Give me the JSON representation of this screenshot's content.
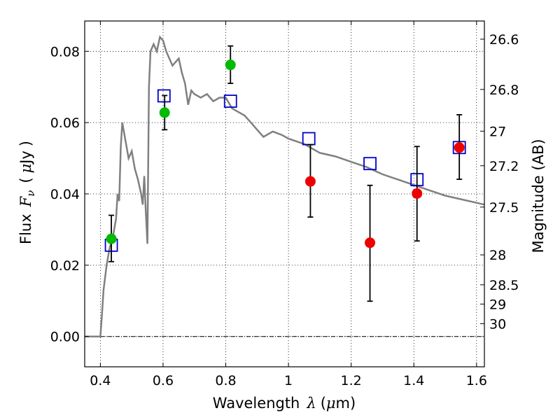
{
  "chart_data": {
    "type": "scatter",
    "xlabel": {
      "prefix": "Wavelength",
      "symbol": "λ",
      "unit_open": "(",
      "unit_mu": "μ",
      "unit_rest": "m)"
    },
    "ylabel": {
      "prefix": "Flux",
      "symbol": "F",
      "subscript": "ν",
      "unit_open": "(",
      "unit_mu": "μ",
      "unit_rest": "Jy",
      "unit_close": ")"
    },
    "y2label": "Magnitude (AB)",
    "xlim": [
      0.35,
      1.625
    ],
    "ylim": [
      -0.0085,
      0.0885
    ],
    "x_ticks": [
      0.4,
      0.6,
      0.8,
      1.0,
      1.2,
      1.4,
      1.6
    ],
    "x_tick_labels": [
      "0.4",
      "0.6",
      "0.8",
      "1",
      "1.2",
      "1.4",
      "1.6"
    ],
    "y_ticks": [
      0.0,
      0.02,
      0.04,
      0.06,
      0.08
    ],
    "y_tick_labels": [
      "0.00",
      "0.02",
      "0.04",
      "0.06",
      "0.08"
    ],
    "y2_ticks": [
      {
        "label": "26.6",
        "flux": 0.0834
      },
      {
        "label": "26.8",
        "flux": 0.0693
      },
      {
        "label": "27",
        "flux": 0.0576
      },
      {
        "label": "27.2",
        "flux": 0.0479
      },
      {
        "label": "27.5",
        "flux": 0.0363
      },
      {
        "label": "28",
        "flux": 0.0229
      },
      {
        "label": "28.5",
        "flux": 0.0145
      },
      {
        "label": "29",
        "flux": 0.0091
      },
      {
        "label": "30",
        "flux": 0.0036
      }
    ],
    "grid": true,
    "zero_line": 0.0,
    "colors": {
      "model": "#808080",
      "template": "#0000cc",
      "green": "#00bb00",
      "red": "#ee0000",
      "error": "#000000"
    },
    "model_spectrum": {
      "x": [
        0.35,
        0.4,
        0.405,
        0.41,
        0.42,
        0.43,
        0.44,
        0.45,
        0.455,
        0.46,
        0.465,
        0.47,
        0.48,
        0.49,
        0.5,
        0.51,
        0.52,
        0.53,
        0.535,
        0.54,
        0.545,
        0.55,
        0.555,
        0.56,
        0.57,
        0.58,
        0.59,
        0.6,
        0.61,
        0.62,
        0.63,
        0.64,
        0.65,
        0.66,
        0.67,
        0.68,
        0.69,
        0.7,
        0.72,
        0.74,
        0.76,
        0.78,
        0.8,
        0.82,
        0.84,
        0.86,
        0.88,
        0.9,
        0.92,
        0.95,
        0.98,
        1.0,
        1.05,
        1.1,
        1.15,
        1.2,
        1.25,
        1.3,
        1.35,
        1.4,
        1.45,
        1.5,
        1.55,
        1.6,
        1.625
      ],
      "y": [
        0.0,
        0.0,
        0.006,
        0.013,
        0.02,
        0.025,
        0.028,
        0.033,
        0.04,
        0.038,
        0.053,
        0.06,
        0.055,
        0.05,
        0.052,
        0.047,
        0.044,
        0.04,
        0.037,
        0.045,
        0.035,
        0.026,
        0.07,
        0.08,
        0.082,
        0.08,
        0.084,
        0.083,
        0.08,
        0.078,
        0.076,
        0.077,
        0.078,
        0.074,
        0.071,
        0.065,
        0.069,
        0.068,
        0.067,
        0.068,
        0.066,
        0.067,
        0.067,
        0.064,
        0.063,
        0.062,
        0.06,
        0.058,
        0.056,
        0.0575,
        0.0565,
        0.0555,
        0.054,
        0.0515,
        0.0505,
        0.049,
        0.0475,
        0.0455,
        0.044,
        0.0425,
        0.041,
        0.0395,
        0.0385,
        0.0375,
        0.037
      ]
    },
    "template_points": {
      "x": [
        0.435,
        0.603,
        0.815,
        1.065,
        1.26,
        1.41,
        1.545
      ],
      "y": [
        0.0256,
        0.0675,
        0.066,
        0.0555,
        0.0485,
        0.044,
        0.053
      ]
    },
    "green_points": [
      {
        "x": 0.435,
        "y": 0.0274,
        "err_low": 0.021,
        "err_high": 0.034
      },
      {
        "x": 0.605,
        "y": 0.0628,
        "err_low": 0.058,
        "err_high": 0.0676
      },
      {
        "x": 0.815,
        "y": 0.0762,
        "err_low": 0.071,
        "err_high": 0.0815
      }
    ],
    "red_points": [
      {
        "x": 1.07,
        "y": 0.0435,
        "err_low": 0.0335,
        "err_high": 0.0538
      },
      {
        "x": 1.26,
        "y": 0.0263,
        "err_low": 0.0099,
        "err_high": 0.0424
      },
      {
        "x": 1.41,
        "y": 0.0401,
        "err_low": 0.0268,
        "err_high": 0.0533
      },
      {
        "x": 1.545,
        "y": 0.053,
        "err_low": 0.0441,
        "err_high": 0.0622
      }
    ]
  }
}
